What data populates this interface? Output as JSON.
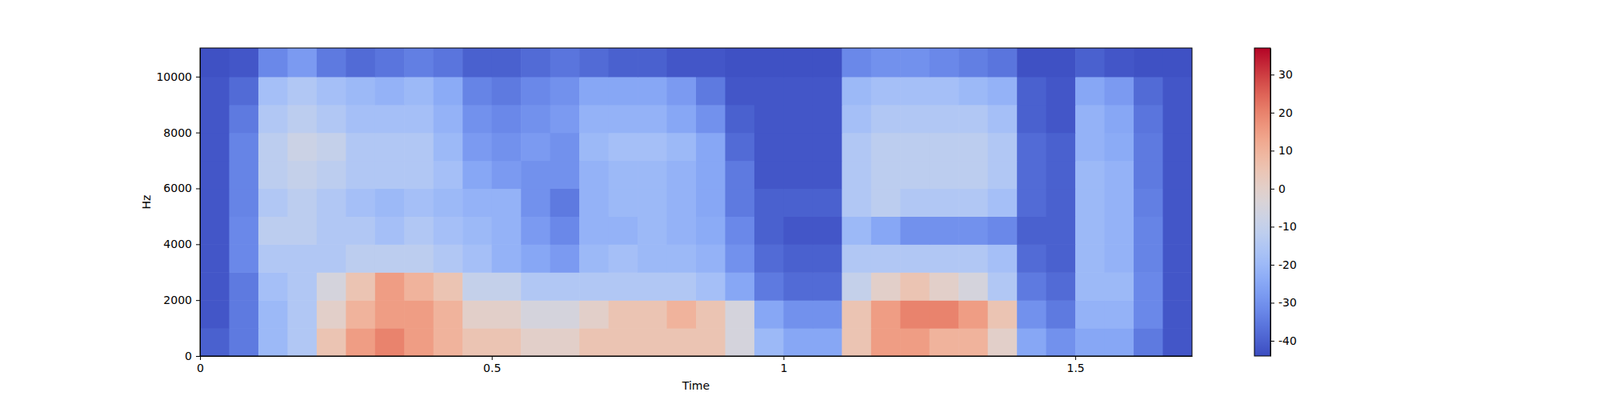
{
  "chart_data": {
    "type": "heatmap",
    "x_label": "Time",
    "y_label": "Hz",
    "xlim": [
      0,
      1.7
    ],
    "xticks": [
      0,
      0.5,
      1,
      1.5
    ],
    "ylim": [
      0,
      11025
    ],
    "yticks": [
      0,
      2000,
      4000,
      6000,
      8000,
      10000
    ],
    "x": [
      0,
      0.05,
      0.1,
      0.15,
      0.2,
      0.25,
      0.3,
      0.35,
      0.4,
      0.45,
      0.5,
      0.55,
      0.6,
      0.65,
      0.7,
      0.75,
      0.8,
      0.85,
      0.9,
      0.95,
      1.0,
      1.05,
      1.1,
      1.15,
      1.2,
      1.25,
      1.3,
      1.35,
      1.4,
      1.45,
      1.5,
      1.55,
      1.6,
      1.65
    ],
    "y": [
      0,
      1000,
      2000,
      3000,
      4000,
      5000,
      6000,
      7000,
      8000,
      9000,
      10000
    ],
    "z": [
      [
        -40,
        -35,
        -20,
        -15,
        5,
        15,
        20,
        15,
        10,
        5,
        5,
        0,
        0,
        5,
        5,
        5,
        5,
        5,
        -5,
        -20,
        -25,
        -25,
        5,
        15,
        15,
        10,
        10,
        0,
        -25,
        -30,
        -25,
        -25,
        -35,
        -42
      ],
      [
        -42,
        -35,
        -20,
        -15,
        0,
        10,
        15,
        15,
        10,
        0,
        0,
        -5,
        -5,
        0,
        5,
        5,
        10,
        5,
        -5,
        -25,
        -30,
        -30,
        5,
        15,
        20,
        20,
        15,
        5,
        -30,
        -35,
        -22,
        -22,
        -32,
        -42
      ],
      [
        -42,
        -35,
        -18,
        -15,
        -5,
        5,
        15,
        10,
        5,
        -10,
        -10,
        -15,
        -15,
        -15,
        -15,
        -15,
        -15,
        -18,
        -25,
        -35,
        -38,
        -38,
        -10,
        0,
        5,
        0,
        -5,
        -15,
        -35,
        -38,
        -20,
        -20,
        -32,
        -42
      ],
      [
        -42,
        -32,
        -15,
        -15,
        -15,
        -12,
        -12,
        -12,
        -15,
        -18,
        -22,
        -25,
        -28,
        -20,
        -18,
        -20,
        -20,
        -22,
        -30,
        -38,
        -40,
        -40,
        -15,
        -15,
        -15,
        -15,
        -15,
        -18,
        -38,
        -40,
        -20,
        -22,
        -33,
        -42
      ],
      [
        -42,
        -32,
        -12,
        -12,
        -15,
        -15,
        -18,
        -15,
        -18,
        -20,
        -22,
        -28,
        -32,
        -22,
        -22,
        -20,
        -22,
        -24,
        -32,
        -40,
        -42,
        -42,
        -20,
        -25,
        -30,
        -30,
        -30,
        -32,
        -40,
        -40,
        -20,
        -22,
        -33,
        -42
      ],
      [
        -42,
        -33,
        -15,
        -12,
        -15,
        -18,
        -20,
        -18,
        -20,
        -22,
        -22,
        -30,
        -35,
        -22,
        -20,
        -20,
        -22,
        -25,
        -35,
        -40,
        -40,
        -40,
        -15,
        -12,
        -15,
        -15,
        -15,
        -18,
        -38,
        -40,
        -20,
        -22,
        -34,
        -42
      ],
      [
        -42,
        -33,
        -12,
        -10,
        -12,
        -15,
        -15,
        -15,
        -18,
        -25,
        -28,
        -30,
        -30,
        -22,
        -20,
        -20,
        -22,
        -25,
        -35,
        -42,
        -42,
        -42,
        -15,
        -12,
        -12,
        -12,
        -12,
        -15,
        -38,
        -40,
        -20,
        -22,
        -35,
        -42
      ],
      [
        -42,
        -33,
        -12,
        -8,
        -10,
        -15,
        -15,
        -15,
        -20,
        -28,
        -30,
        -28,
        -30,
        -20,
        -18,
        -18,
        -20,
        -25,
        -38,
        -42,
        -42,
        -42,
        -15,
        -12,
        -12,
        -12,
        -12,
        -15,
        -38,
        -40,
        -22,
        -24,
        -35,
        -42
      ],
      [
        -42,
        -35,
        -15,
        -12,
        -15,
        -18,
        -18,
        -18,
        -22,
        -30,
        -32,
        -30,
        -28,
        -22,
        -22,
        -22,
        -25,
        -30,
        -40,
        -42,
        -42,
        -42,
        -18,
        -15,
        -15,
        -15,
        -15,
        -18,
        -40,
        -42,
        -22,
        -25,
        -36,
        -42
      ],
      [
        -42,
        -38,
        -18,
        -15,
        -18,
        -20,
        -22,
        -20,
        -24,
        -33,
        -35,
        -32,
        -30,
        -25,
        -25,
        -25,
        -28,
        -35,
        -42,
        -42,
        -42,
        -42,
        -20,
        -18,
        -18,
        -18,
        -20,
        -22,
        -40,
        -42,
        -25,
        -28,
        -38,
        -42
      ],
      [
        -43,
        -42,
        -32,
        -28,
        -35,
        -38,
        -36,
        -34,
        -36,
        -40,
        -40,
        -38,
        -36,
        -38,
        -40,
        -40,
        -42,
        -42,
        -43,
        -43,
        -43,
        -43,
        -32,
        -30,
        -30,
        -32,
        -34,
        -36,
        -43,
        -43,
        -40,
        -42,
        -43,
        -43
      ]
    ],
    "colorbar_range": [
      -44,
      37
    ],
    "colorbar_ticks": [
      -40,
      -30,
      -20,
      -10,
      0,
      10,
      20,
      30
    ]
  }
}
